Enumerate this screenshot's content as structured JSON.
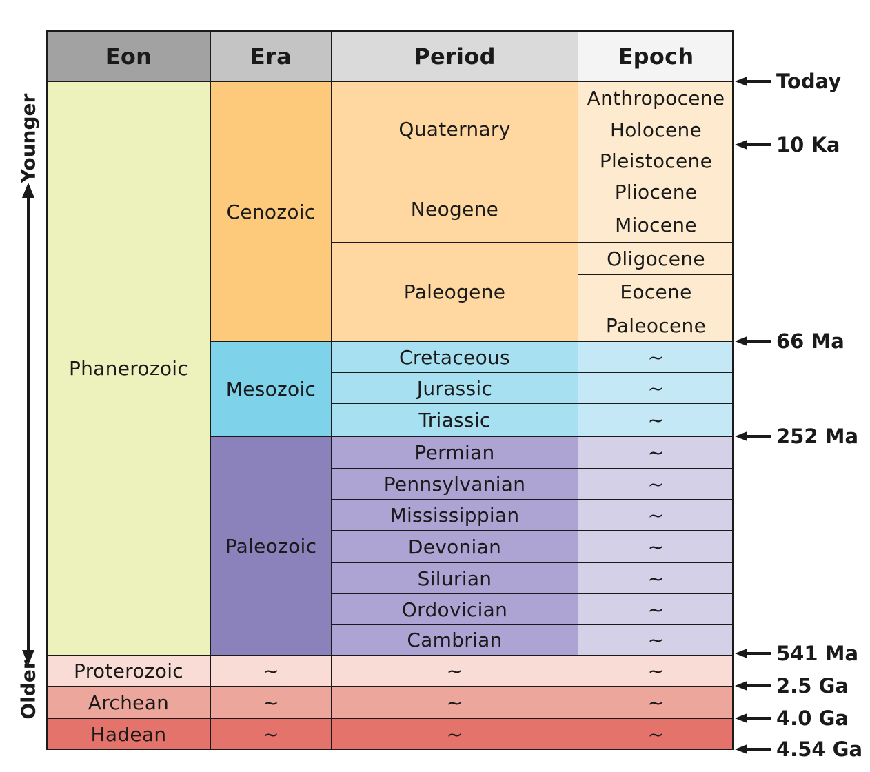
{
  "headers": {
    "eon": "Eon",
    "era": "Era",
    "period": "Period",
    "epoch": "Epoch"
  },
  "eons": [
    {
      "label": "Phanerozoic",
      "color": "#edf2bd"
    },
    {
      "label": "Proterozoic",
      "color": "#f9dcd6"
    },
    {
      "label": "Archean",
      "color": "#eda69c"
    },
    {
      "label": "Hadean",
      "color": "#e3736b"
    }
  ],
  "eras": [
    {
      "label": "Cenozoic",
      "color": "#fdc97b"
    },
    {
      "label": "Mesozoic",
      "color": "#7ed2ea"
    },
    {
      "label": "Paleozoic",
      "color": "#8c82bb"
    }
  ],
  "periods": [
    {
      "label": "Quaternary"
    },
    {
      "label": "Neogene"
    },
    {
      "label": "Paleogene"
    },
    {
      "label": "Cretaceous"
    },
    {
      "label": "Jurassic"
    },
    {
      "label": "Triassic"
    },
    {
      "label": "Permian"
    },
    {
      "label": "Pennsylvanian"
    },
    {
      "label": "Mississippian"
    },
    {
      "label": "Devonian"
    },
    {
      "label": "Silurian"
    },
    {
      "label": "Ordovician"
    },
    {
      "label": "Cambrian"
    }
  ],
  "epochs": [
    {
      "label": "Anthropocene"
    },
    {
      "label": "Holocene"
    },
    {
      "label": "Pleistocene"
    },
    {
      "label": "Pliocene"
    },
    {
      "label": "Miocene"
    },
    {
      "label": "Oligocene"
    },
    {
      "label": "Eocene"
    },
    {
      "label": "Paleocene"
    }
  ],
  "placeholder": "~",
  "time_markers": [
    "Today",
    "10 Ka",
    "66 Ma",
    "252 Ma",
    "541 Ma",
    "2.5 Ga",
    "4.0 Ga",
    "4.54 Ga"
  ],
  "axis": {
    "younger": "Younger",
    "older": "Older"
  },
  "colors": {
    "header_eon": "#a2a2a2",
    "header_era": "#c4c4c4",
    "header_period": "#dadada",
    "header_epoch": "#f4f4f4",
    "cenozoic_period": "#fed8a0",
    "cenozoic_epoch": "#feebcf",
    "mesozoic_period": "#a7e0f1",
    "mesozoic_epoch": "#c4e8f5",
    "paleozoic_period": "#ada4d3",
    "paleozoic_epoch": "#d4d0e8"
  }
}
